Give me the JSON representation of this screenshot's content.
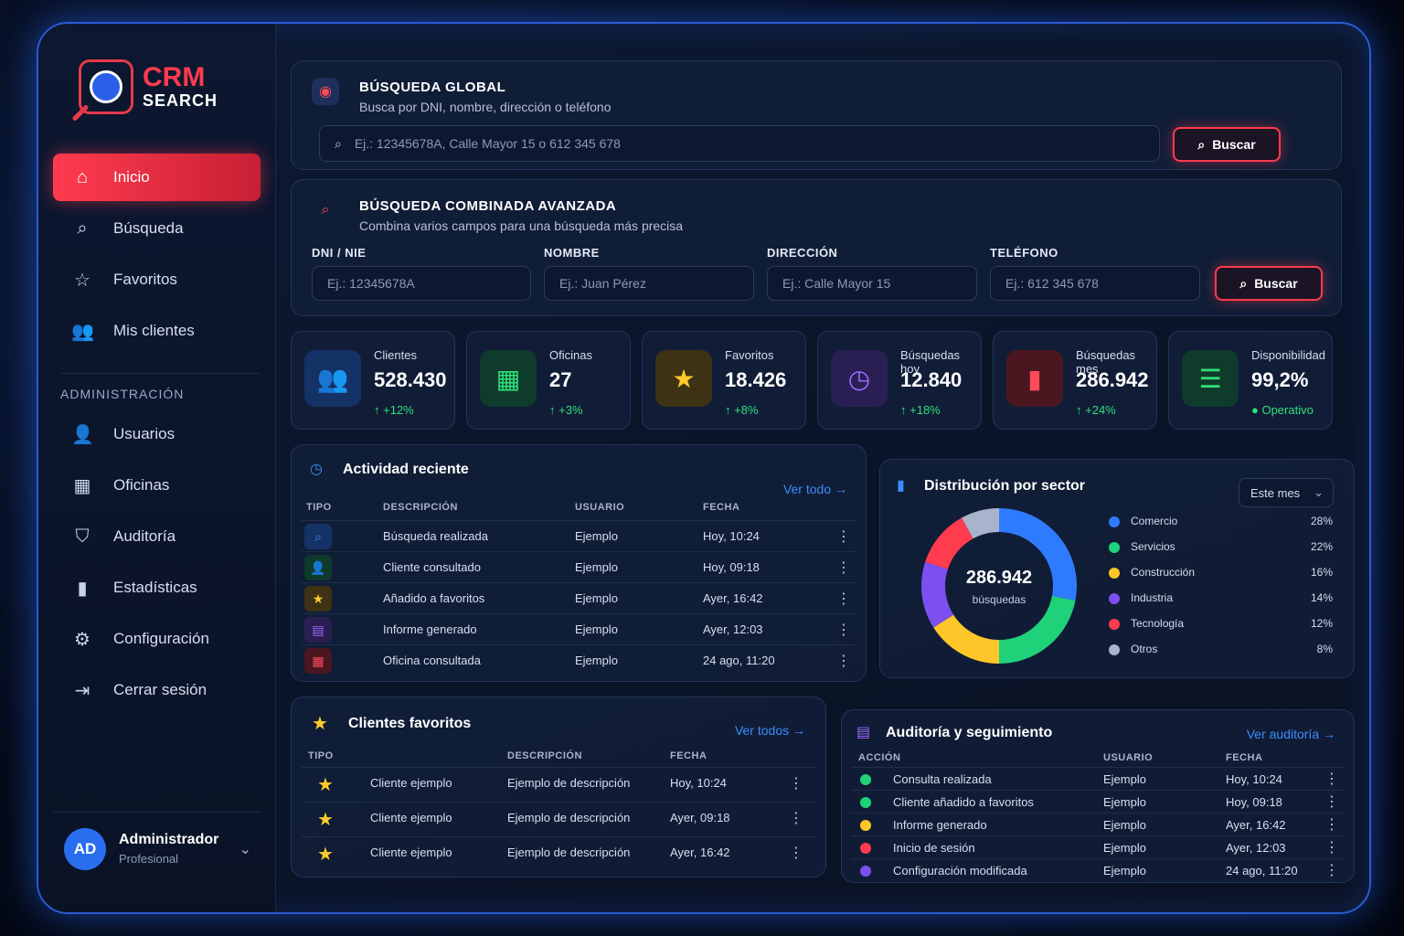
{
  "app": {
    "logo_top": "CRM",
    "logo_bottom": "SEARCH"
  },
  "sidebar": {
    "items": [
      {
        "label": "Inicio",
        "icon": "home-icon"
      },
      {
        "label": "Búsqueda",
        "icon": "search-icon"
      },
      {
        "label": "Favoritos",
        "icon": "star-icon"
      },
      {
        "label": "Mis clientes",
        "icon": "users-icon"
      }
    ],
    "admin_label": "ADMINISTRACIÓN",
    "admin_items": [
      {
        "label": "Usuarios",
        "icon": "user-icon"
      },
      {
        "label": "Oficinas",
        "icon": "building-icon"
      },
      {
        "label": "Auditoría",
        "icon": "shield-icon"
      },
      {
        "label": "Estadísticas",
        "icon": "bar-chart-icon"
      },
      {
        "label": "Configuración",
        "icon": "gear-icon"
      },
      {
        "label": "Cerrar sesión",
        "icon": "logout-icon"
      }
    ],
    "user": {
      "initials": "AD",
      "name": "Administrador",
      "role": "Profesional"
    }
  },
  "global_search": {
    "title": "BÚSQUEDA GLOBAL",
    "subtitle": "Busca por DNI, nombre, dirección o teléfono",
    "placeholder": "Ej.: 12345678A, Calle Mayor 15 o 612 345 678",
    "button": "Buscar"
  },
  "advanced_search": {
    "title": "BÚSQUEDA COMBINADA AVANZADA",
    "subtitle": "Combina varios campos para una búsqueda más precisa",
    "fields": [
      {
        "label": "DNI / NIE",
        "placeholder": "Ej.: 12345678A"
      },
      {
        "label": "NOMBRE",
        "placeholder": "Ej.: Juan Pérez"
      },
      {
        "label": "DIRECCIÓN",
        "placeholder": "Ej.: Calle Mayor 15"
      },
      {
        "label": "TELÉFONO",
        "placeholder": "Ej.: 612 345 678"
      }
    ],
    "button": "Buscar"
  },
  "stats": [
    {
      "label": "Clientes",
      "value": "528.430",
      "delta": "+12%",
      "color": "#2f6fe8",
      "icon": "users-icon"
    },
    {
      "label": "Oficinas",
      "value": "27",
      "delta": "+3%",
      "color": "#1fbf6a",
      "icon": "building-icon"
    },
    {
      "label": "Favoritos",
      "value": "18.426",
      "delta": "+8%",
      "color": "#ffcb2a",
      "icon": "star-icon"
    },
    {
      "label": "Búsquedas hoy",
      "value": "12.840",
      "delta": "+18%",
      "color": "#8a5cf0",
      "icon": "clock-icon"
    },
    {
      "label": "Búsquedas mes",
      "value": "286.942",
      "delta": "+24%",
      "color": "#ff3b4e",
      "icon": "bar-chart-icon"
    },
    {
      "label": "Disponibilidad",
      "value": "99,2%",
      "delta": "Operativo",
      "color": "#1fbf6a",
      "icon": "database-icon"
    }
  ],
  "activity": {
    "title": "Actividad reciente",
    "link": "Ver todo",
    "headers": [
      "TIPO",
      "DESCRIPCIÓN",
      "USUARIO",
      "FECHA"
    ],
    "rows": [
      {
        "desc": "Búsqueda realizada",
        "user": "Ejemplo",
        "date": "Hoy, 10:24",
        "icon": "search-icon",
        "color": "#2f6fe8"
      },
      {
        "desc": "Cliente consultado",
        "user": "Ejemplo",
        "date": "Hoy, 09:18",
        "icon": "user-icon",
        "color": "#1fbf6a"
      },
      {
        "desc": "Añadido a favoritos",
        "user": "Ejemplo",
        "date": "Ayer, 16:42",
        "icon": "star-icon",
        "color": "#ffcb2a"
      },
      {
        "desc": "Informe generado",
        "user": "Ejemplo",
        "date": "Ayer, 12:03",
        "icon": "document-icon",
        "color": "#8a5cf0"
      },
      {
        "desc": "Oficina consultada",
        "user": "Ejemplo",
        "date": "24 ago, 11:20",
        "icon": "building-icon",
        "color": "#ff3b4e"
      }
    ]
  },
  "distribution": {
    "title": "Distribución por sector",
    "period": "Este mes",
    "center_value": "286.942",
    "center_label": "búsquedas",
    "sectors": [
      {
        "name": "Comercio",
        "pct": "28%",
        "value": 28,
        "color": "#2f7bff"
      },
      {
        "name": "Servicios",
        "pct": "22%",
        "value": 22,
        "color": "#1fd27a"
      },
      {
        "name": "Construcción",
        "pct": "16%",
        "value": 16,
        "color": "#ffc62a"
      },
      {
        "name": "Industria",
        "pct": "14%",
        "value": 14,
        "color": "#7b4ff0"
      },
      {
        "name": "Tecnología",
        "pct": "12%",
        "value": 12,
        "color": "#ff3b4e"
      },
      {
        "name": "Otros",
        "pct": "8%",
        "value": 8,
        "color": "#a8b4cc"
      }
    ]
  },
  "favorites": {
    "title": "Clientes favoritos",
    "link": "Ver todos",
    "headers": [
      "TIPO",
      "DESCRIPCIÓN",
      "FECHA"
    ],
    "rows": [
      {
        "name": "Cliente ejemplo",
        "desc": "Ejemplo de descripción",
        "date": "Hoy, 10:24"
      },
      {
        "name": "Cliente ejemplo",
        "desc": "Ejemplo de descripción",
        "date": "Ayer, 09:18"
      },
      {
        "name": "Cliente ejemplo",
        "desc": "Ejemplo de descripción",
        "date": "Ayer, 16:42"
      }
    ]
  },
  "audit": {
    "title": "Auditoría y seguimiento",
    "link": "Ver auditoría",
    "headers": [
      "ACCIÓN",
      "USUARIO",
      "FECHA"
    ],
    "rows": [
      {
        "action": "Consulta realizada",
        "user": "Ejemplo",
        "date": "Hoy, 10:24",
        "color": "#1fd27a"
      },
      {
        "action": "Cliente añadido a favoritos",
        "user": "Ejemplo",
        "date": "Hoy, 09:18",
        "color": "#1fd27a"
      },
      {
        "action": "Informe generado",
        "user": "Ejemplo",
        "date": "Ayer, 16:42",
        "color": "#ffc62a"
      },
      {
        "action": "Inicio de sesión",
        "user": "Ejemplo",
        "date": "Ayer, 12:03",
        "color": "#ff3b4e"
      },
      {
        "action": "Configuración modificada",
        "user": "Ejemplo",
        "date": "24 ago, 11:20",
        "color": "#7b4ff0"
      }
    ]
  }
}
